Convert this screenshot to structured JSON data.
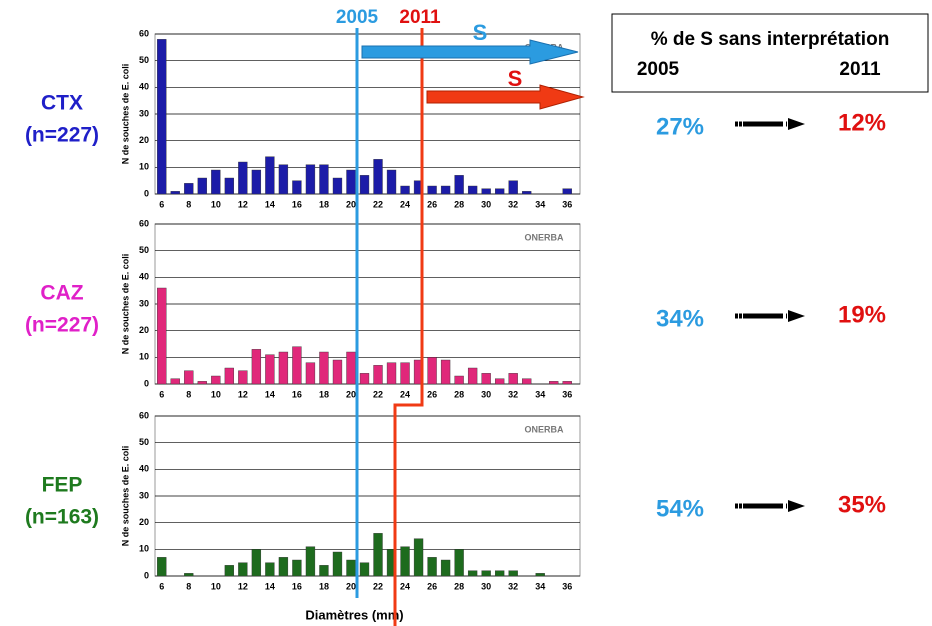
{
  "chart_data": [
    {
      "type": "bar",
      "label": "CTX",
      "n": "(n=227)",
      "color": "#1c1ca8",
      "label_color": "#1f1fc8",
      "ylabel": "N de souches de E. coli",
      "watermark": "ONERBA",
      "categories": [
        6,
        null,
        8,
        null,
        10,
        null,
        12,
        null,
        14,
        null,
        16,
        null,
        18,
        null,
        20,
        null,
        22,
        null,
        24,
        null,
        26,
        null,
        28,
        null,
        30,
        null,
        32,
        null,
        34,
        null,
        36
      ],
      "values": [
        58,
        1,
        4,
        6,
        9,
        6,
        12,
        9,
        14,
        11,
        5,
        11,
        11,
        6,
        9,
        7,
        13,
        9,
        3,
        5,
        3,
        3,
        7,
        3,
        2,
        2,
        5,
        1,
        0,
        0,
        2
      ],
      "ylim": [
        0,
        60
      ],
      "yticks": [
        0,
        10,
        20,
        30,
        40,
        50,
        60
      ],
      "grid": true,
      "pct_2005": "27%",
      "pct_2011": "12%"
    },
    {
      "type": "bar",
      "label": "CAZ",
      "n": "(n=227)",
      "color": "#e0287a",
      "label_color": "#e020c8",
      "ylabel": "N de souches de E. coli",
      "watermark": "ONERBA",
      "categories": [
        6,
        null,
        8,
        null,
        10,
        null,
        12,
        null,
        14,
        null,
        16,
        null,
        18,
        null,
        20,
        null,
        22,
        null,
        24,
        null,
        26,
        null,
        28,
        null,
        30,
        null,
        32,
        null,
        34,
        null,
        36
      ],
      "values": [
        36,
        2,
        5,
        1,
        3,
        6,
        5,
        13,
        11,
        12,
        14,
        8,
        12,
        9,
        12,
        4,
        7,
        8,
        8,
        9,
        10,
        9,
        3,
        6,
        4,
        2,
        4,
        2,
        0,
        1,
        1
      ],
      "ylim": [
        0,
        60
      ],
      "yticks": [
        0,
        10,
        20,
        30,
        40,
        50,
        60
      ],
      "grid": true,
      "pct_2005": "34%",
      "pct_2011": "19%"
    },
    {
      "type": "bar",
      "label": "FEP",
      "n": "(n=163)",
      "color": "#1e6b1e",
      "label_color": "#1e7a1e",
      "ylabel": "N de souches de E. coli",
      "watermark": "ONERBA",
      "categories": [
        6,
        null,
        8,
        null,
        10,
        null,
        12,
        null,
        14,
        null,
        16,
        null,
        18,
        null,
        20,
        null,
        22,
        null,
        24,
        null,
        26,
        null,
        28,
        null,
        30,
        null,
        32,
        null,
        34,
        null,
        36
      ],
      "values": [
        7,
        0,
        1,
        0,
        0,
        4,
        5,
        10,
        5,
        7,
        6,
        11,
        4,
        9,
        6,
        5,
        16,
        10,
        11,
        14,
        7,
        6,
        10,
        2,
        2,
        2,
        2,
        0,
        1,
        0,
        0
      ],
      "ylim": [
        0,
        60
      ],
      "yticks": [
        0,
        10,
        20,
        30,
        40,
        50,
        60
      ],
      "grid": true,
      "pct_2005": "54%",
      "pct_2011": "35%",
      "xlabel": "Diamètres (mm)"
    }
  ],
  "header": {
    "title": "% de S sans interprétation",
    "year_2005": "2005",
    "year_2011": "2011"
  },
  "breakpoints": {
    "line_2005": "2005",
    "line_2011": "2011",
    "arrow_2005": "S",
    "arrow_2011": "S"
  }
}
